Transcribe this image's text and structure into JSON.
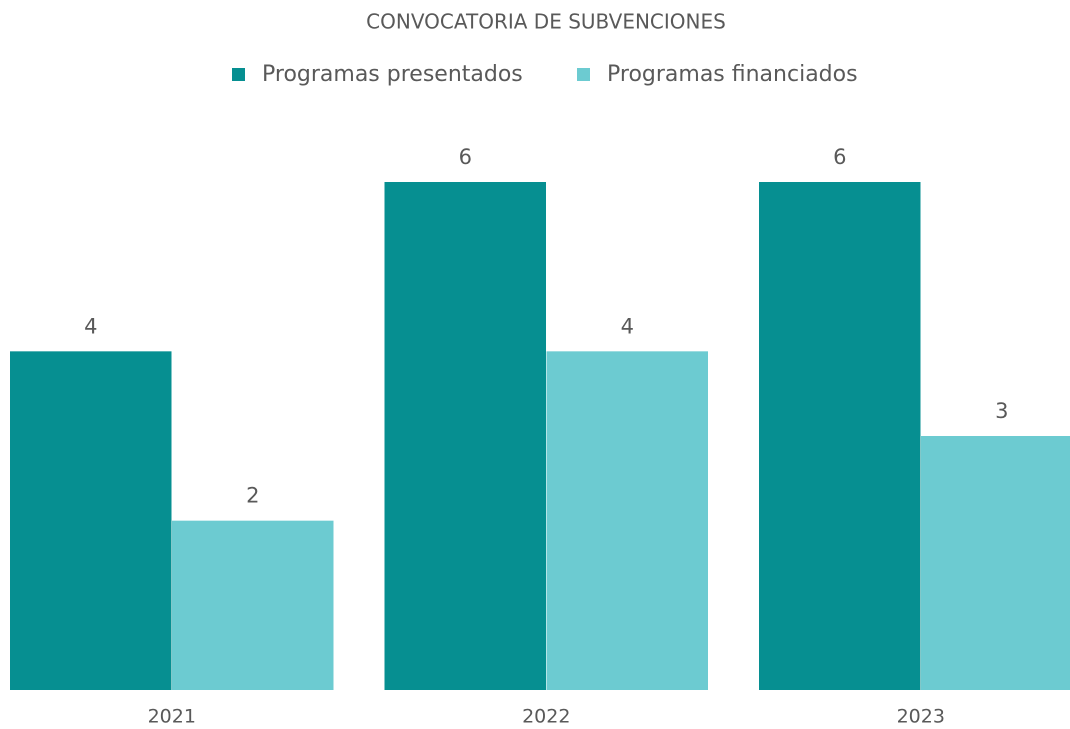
{
  "chart_data": {
    "type": "bar",
    "title": "CONVOCATORIA DE SUBVENCIONES",
    "categories": [
      "2021",
      "2022",
      "2023"
    ],
    "series": [
      {
        "name": "Programas presentados",
        "color": "#068f91",
        "values": [
          4,
          6,
          6
        ]
      },
      {
        "name": "Programas financiados",
        "color": "#6ccbd1",
        "values": [
          2,
          4,
          3
        ]
      }
    ]
  }
}
